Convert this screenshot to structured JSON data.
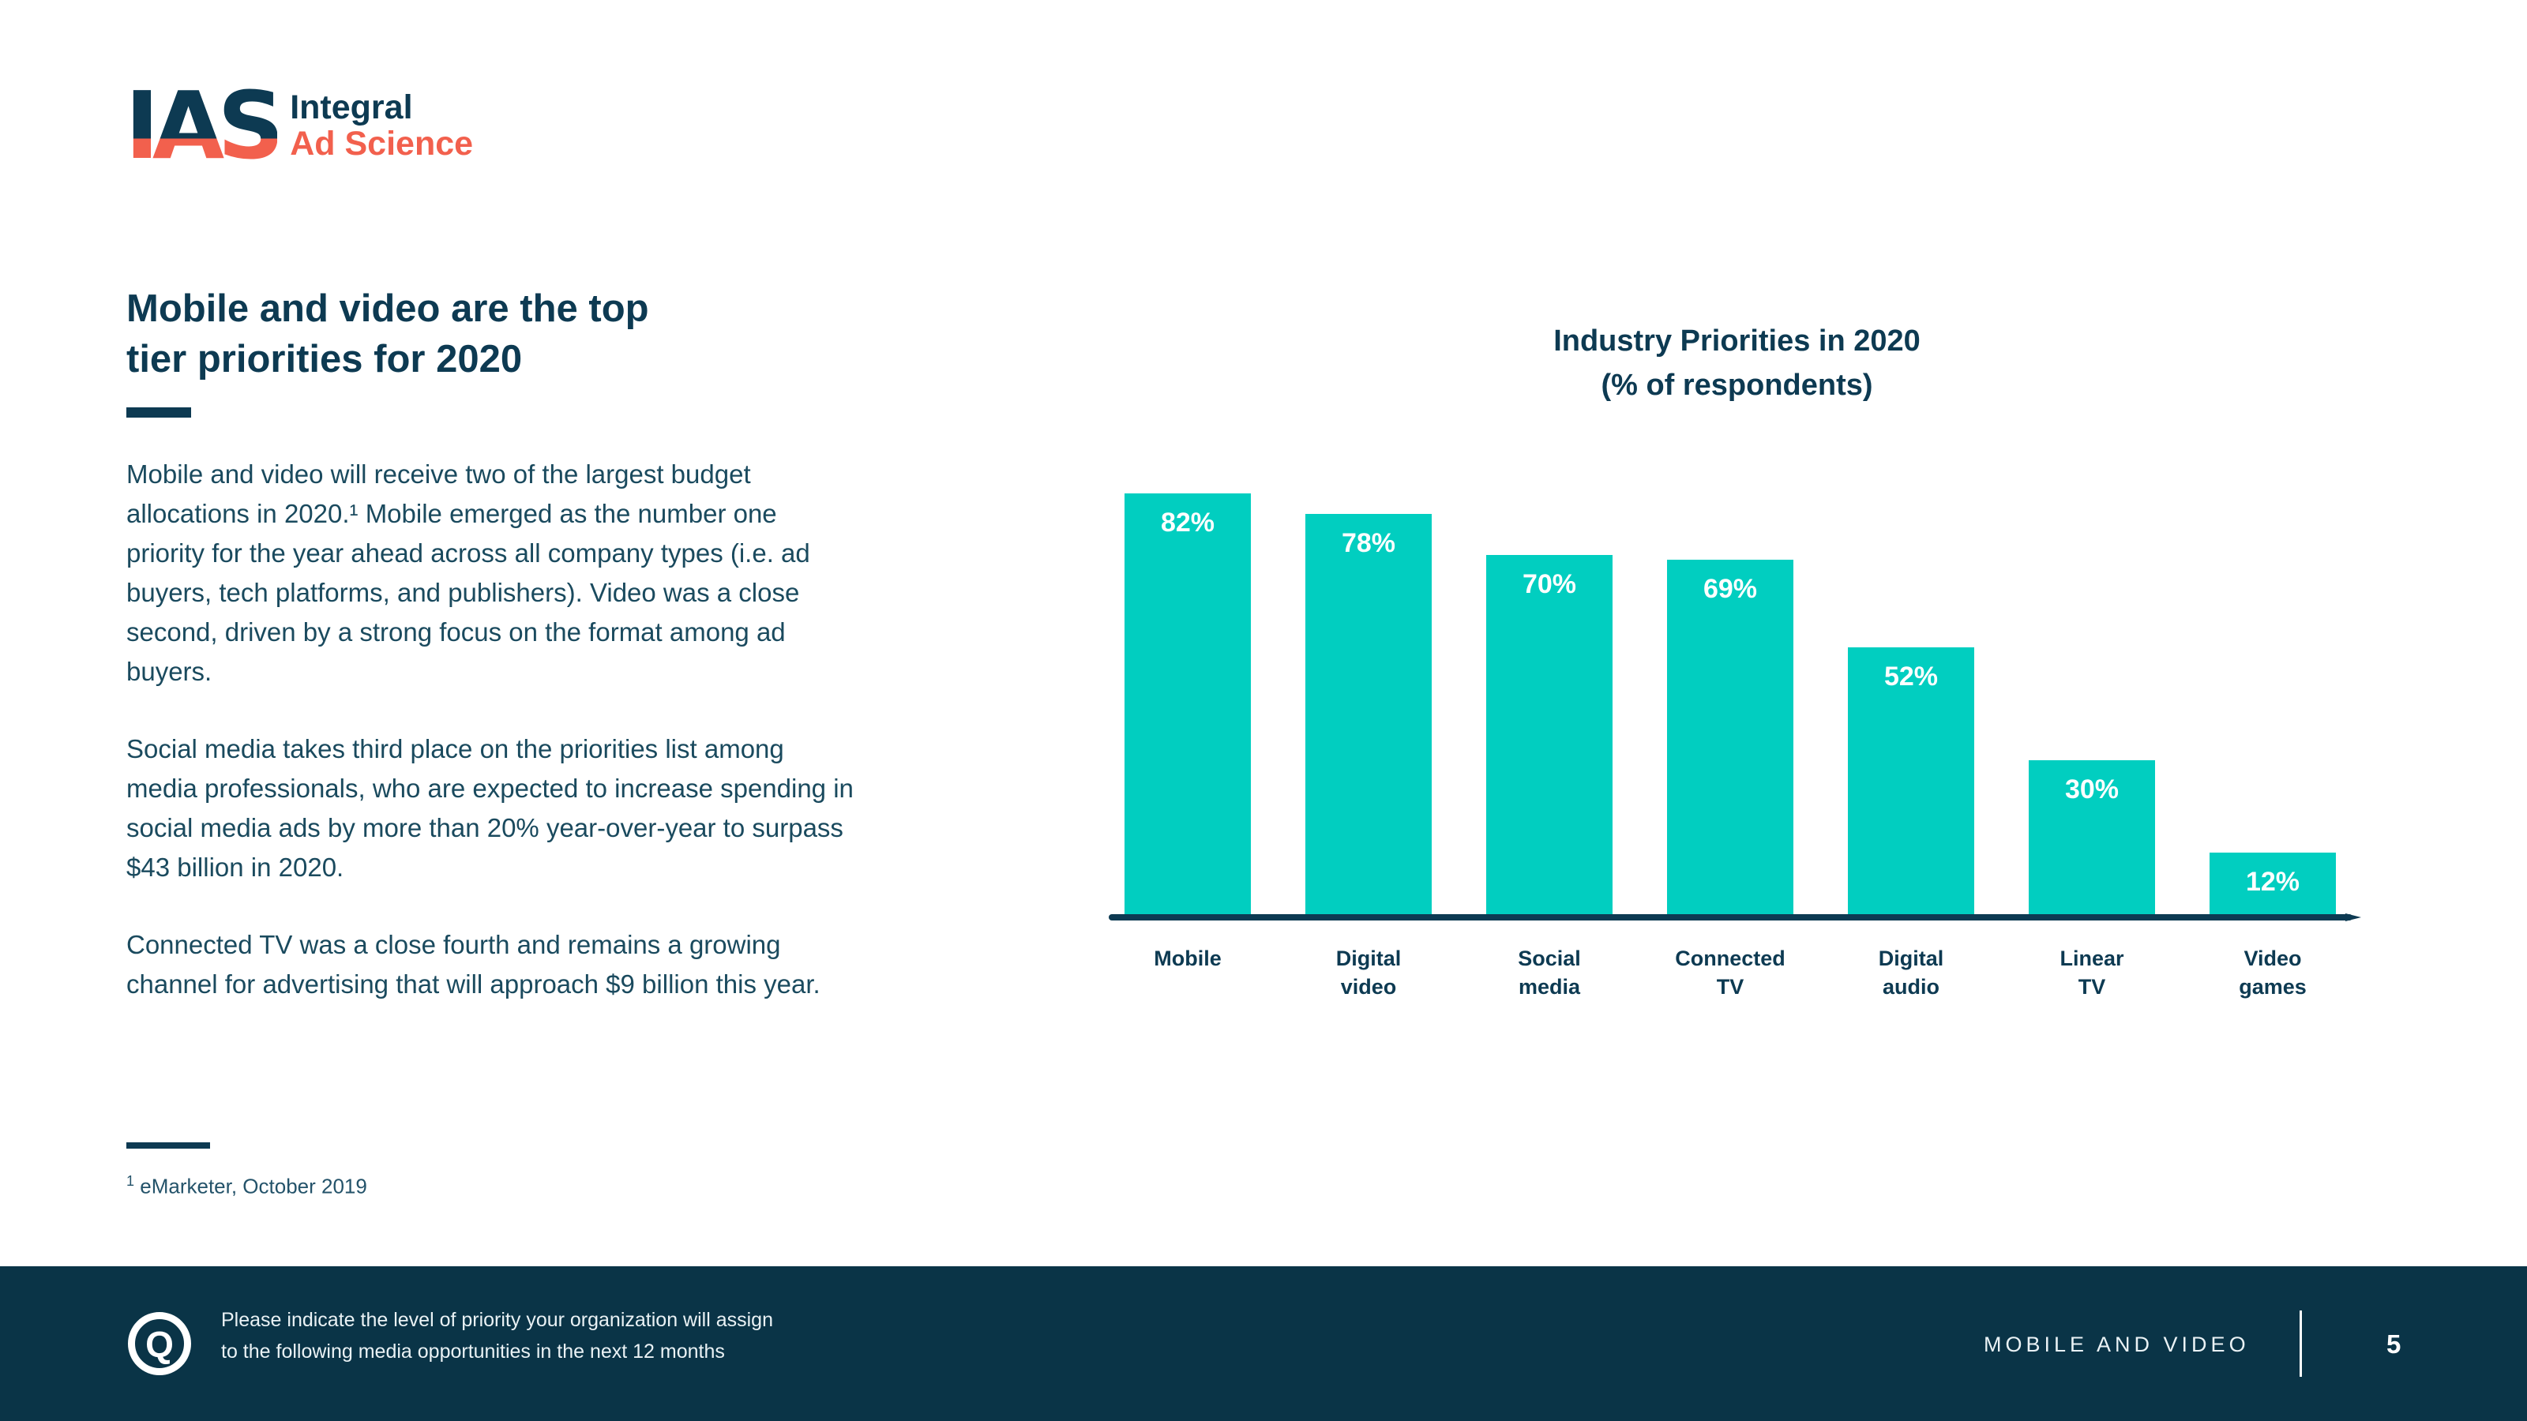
{
  "brand": {
    "logo_acronym": "IAS",
    "logo_name_line1": "Integral",
    "logo_name_line2": "Ad Science"
  },
  "left_panel": {
    "heading_line1": "Mobile and video are the top",
    "heading_line2": "tier priorities for 2020",
    "paragraphs": [
      "Mobile and video will receive two of the largest budget allocations in 2020.¹ Mobile emerged as the number one priority for the year ahead across all company types (i.e. ad buyers, tech platforms, and publishers). Video was a close second, driven by a strong focus on the format among ad buyers.",
      "Social media takes third place on the priorities list among media professionals, who are expected to increase spending in social media ads by more than 20% year-over-year to surpass $43 billion in 2020.",
      "Connected TV was a close fourth and remains a growing channel for advertising that will approach $9 billion this year."
    ],
    "footnote_mark": "1",
    "footnote_text": "eMarketer, October 2019"
  },
  "chart_data": {
    "type": "bar",
    "title": "Industry Priorities in 2020",
    "subtitle": "(% of respondents)",
    "categories": [
      "Mobile",
      "Digital video",
      "Social media",
      "Connected TV",
      "Digital audio",
      "Linear TV",
      "Video games"
    ],
    "values": [
      82,
      78,
      70,
      69,
      52,
      30,
      12
    ],
    "value_labels": [
      "82%",
      "78%",
      "70%",
      "69%",
      "52%",
      "30%",
      "12%"
    ],
    "xlabel": "",
    "ylabel": "",
    "ylim": [
      0,
      100
    ],
    "grid": false,
    "legend": "none",
    "bar_color": "#01CEC0",
    "value_label_color": "#ffffff",
    "axis_color": "#0D3A52"
  },
  "footer": {
    "icon": "question-badge-icon",
    "icon_letter": "Q",
    "note_line1": "Please indicate the level of priority your organization will assign",
    "note_line2": "to the following media opportunities in the next 12 months",
    "section_label": "MOBILE AND VIDEO",
    "page_number": "5"
  },
  "colors": {
    "accent_teal": "#01CEC0",
    "brand_navy": "#0D3A52",
    "brand_coral": "#F2604D",
    "footer_background": "#0A3447",
    "body_text": "#1A4A5E"
  }
}
